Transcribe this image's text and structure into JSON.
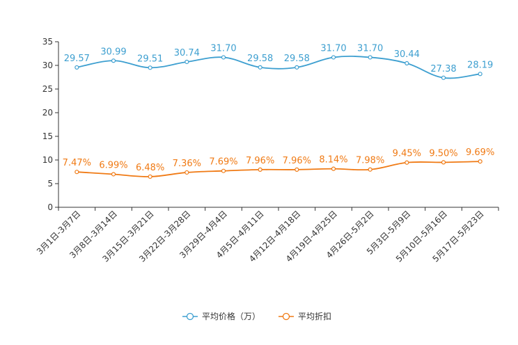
{
  "chart_data": {
    "type": "line",
    "title": "",
    "xlabel": "",
    "ylabel": "",
    "ylim": [
      0,
      35
    ],
    "yticks": [
      0,
      5,
      10,
      15,
      20,
      25,
      30,
      35
    ],
    "grid": false,
    "legend_position": "bottom-center",
    "categories": [
      "3月1日-3月7日",
      "3月8日-3月14日",
      "3月15日-3月21日",
      "3月22日-3月28日",
      "3月29日-4月4日",
      "4月5日-4月11日",
      "4月12日-4月18日",
      "4月19日-4月25日",
      "4月26日-5月2日",
      "5月3日-5月9日",
      "5月10日-5月16日",
      "5月17日-5月23日"
    ],
    "series": [
      {
        "name": "平均价格（万）",
        "color": "#3d9fd0",
        "values": [
          29.57,
          30.99,
          29.51,
          30.74,
          31.7,
          29.58,
          29.58,
          31.7,
          31.7,
          30.44,
          27.38,
          28.19
        ],
        "labels": [
          "29.57",
          "30.99",
          "29.51",
          "30.74",
          "31.70",
          "29.58",
          "29.58",
          "31.70",
          "31.70",
          "30.44",
          "27.38",
          "28.19"
        ]
      },
      {
        "name": "平均折扣",
        "color": "#f07a14",
        "values": [
          7.47,
          6.99,
          6.48,
          7.36,
          7.69,
          7.96,
          7.96,
          8.14,
          7.98,
          9.45,
          9.5,
          9.69
        ],
        "labels": [
          "7.47%",
          "6.99%",
          "6.48%",
          "7.36%",
          "7.69%",
          "7.96%",
          "7.96%",
          "8.14%",
          "7.98%",
          "9.45%",
          "9.50%",
          "9.69%"
        ]
      }
    ]
  }
}
